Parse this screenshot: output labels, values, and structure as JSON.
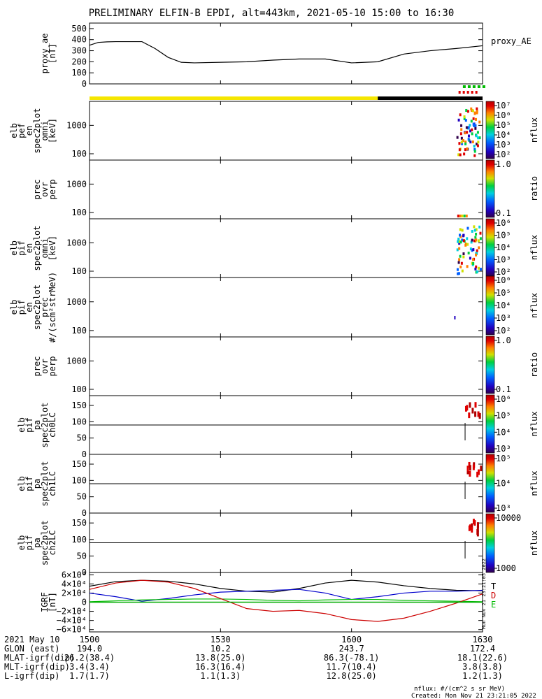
{
  "title": "PRELIMINARY ELFIN-B EPDI, alt=443km, 2021-05-10 15:00 to 16:30",
  "footer": {
    "nflux_units": "nflux: #/(cm^2 s sr MeV)",
    "created": "Created: Mon Nov 21 23:21:05 2022",
    "side_stamp": "Mon Nov 21 23:21:05 2022"
  },
  "colors": {
    "proxy_line": "#000000",
    "state_yellow": "#f5e600",
    "state_black": "#000000",
    "grf_t": "#000000",
    "grf_d": "#cc0000",
    "grf_e": "#00bb00",
    "grf_blue": "#0000cc"
  },
  "time_axis": {
    "start_minutes": 0,
    "end_minutes": 90,
    "ticks": [
      {
        "label": "1500",
        "minutes": 0
      },
      {
        "label": "1530",
        "minutes": 30
      },
      {
        "label": "1600",
        "minutes": 60
      },
      {
        "label": "1630",
        "minutes": 90
      }
    ]
  },
  "ephemeris": {
    "header": [
      "2021 May 10",
      "1500",
      "1530",
      "1600",
      "1630"
    ],
    "rows": [
      {
        "label": "GLON (east)",
        "values": [
          "194.0",
          "10.2",
          "243.7",
          "172.4"
        ]
      },
      {
        "label": "MLAT-igrf(dip)",
        "values": [
          "26.2(38.4)",
          "13.8(25.0)",
          "86.3(-78.1)",
          "18.1(22.6)"
        ]
      },
      {
        "label": "MLT-igrf(dip)",
        "values": [
          "3.4(3.4)",
          "16.3(16.4)",
          "11.7(10.4)",
          "3.8(3.8)"
        ]
      },
      {
        "label": "L-igrf(dip)",
        "values": [
          "1.7(1.7)",
          "1.1(1.3)",
          "12.8(25.0)",
          "1.2(1.3)"
        ]
      }
    ]
  },
  "colorbars": [
    {
      "label": "nflux",
      "ticks": [
        "10⁷",
        "10⁶",
        "10⁵",
        "10⁴",
        "10³",
        "10²"
      ]
    },
    {
      "label": "ratio",
      "ticks": [
        "1.0",
        "0.1"
      ]
    },
    {
      "label": "nflux",
      "ticks": [
        "10⁶",
        "10⁵",
        "10⁴",
        "10³",
        "10²"
      ]
    },
    {
      "label": "nflux",
      "ticks": [
        "10⁶",
        "10⁵",
        "10⁴",
        "10³",
        "10²"
      ]
    },
    {
      "label": "ratio",
      "ticks": [
        "1.0",
        "0.1"
      ]
    },
    {
      "label": "nflux",
      "ticks": [
        "10⁶",
        "10⁵",
        "10⁴",
        "10³"
      ]
    },
    {
      "label": "nflux",
      "ticks": [
        "10⁵",
        "10⁴",
        "10³"
      ]
    },
    {
      "label": "nflux",
      "ticks": [
        "10000",
        "1000"
      ]
    }
  ],
  "chart_data": [
    {
      "type": "line",
      "ylabel": [
        "proxy_ae",
        "[nT]"
      ],
      "legend": "proxy_AE",
      "ylim": [
        0,
        550
      ],
      "yticks": [
        "0",
        "100",
        "200",
        "300",
        "400",
        "500"
      ],
      "yticks_values": [
        0,
        100,
        200,
        300,
        400,
        500
      ],
      "series": [
        {
          "x": [
            0,
            2,
            4,
            6,
            12,
            15,
            18,
            21,
            24,
            30,
            36,
            42,
            48,
            54,
            60,
            66,
            72,
            78,
            84,
            90
          ],
          "y": [
            350,
            375,
            380,
            382,
            382,
            320,
            240,
            195,
            190,
            195,
            200,
            215,
            225,
            225,
            190,
            200,
            270,
            300,
            320,
            345
          ]
        }
      ]
    },
    {
      "type": "heatmap",
      "ylabel": [
        "elb",
        "pef",
        "en",
        "spec2plot",
        "omni",
        "[keV]"
      ],
      "yscale": "log",
      "ylim": [
        60,
        7000
      ],
      "yticks": [
        "100",
        "1000"
      ],
      "yticks_values": [
        100,
        1000
      ],
      "colorbar": 0
    },
    {
      "type": "heatmap",
      "ylabel": [
        "prec",
        "ovr",
        "perp"
      ],
      "yscale": "log",
      "ylim": [
        60,
        7000
      ],
      "yticks": [
        "100",
        "1000"
      ],
      "yticks_values": [
        100,
        1000
      ],
      "colorbar": 1
    },
    {
      "type": "heatmap",
      "ylabel": [
        "elb",
        "pif",
        "en",
        "spec2plot",
        "omni",
        "[keV]"
      ],
      "yscale": "log",
      "ylim": [
        60,
        7000
      ],
      "yticks": [
        "100",
        "1000"
      ],
      "yticks_values": [
        100,
        1000
      ],
      "colorbar": 2
    },
    {
      "type": "heatmap",
      "ylabel": [
        "elb",
        "pif",
        "en",
        "spec2plot",
        "prec",
        "#/(scm²strMeV)"
      ],
      "yscale": "log",
      "ylim": [
        60,
        7000
      ],
      "yticks": [
        "100",
        "1000"
      ],
      "yticks_values": [
        100,
        1000
      ],
      "colorbar": 3
    },
    {
      "type": "heatmap",
      "ylabel": [
        "prec",
        "ovr",
        "perp"
      ],
      "yscale": "log",
      "ylim": [
        60,
        7000
      ],
      "yticks": [
        "100",
        "1000"
      ],
      "yticks_values": [
        100,
        1000
      ],
      "colorbar": 4
    },
    {
      "type": "heatmap",
      "ylabel": [
        "elb",
        "pif",
        "pa",
        "spec2plot",
        "ch0LC"
      ],
      "ylim": [
        0,
        180
      ],
      "hline": 90,
      "yticks": [
        "0",
        "50",
        "100",
        "150"
      ],
      "yticks_values": [
        0,
        50,
        100,
        150
      ],
      "colorbar": 5
    },
    {
      "type": "heatmap",
      "ylabel": [
        "elb",
        "pif",
        "pa",
        "spec2plot",
        "ch1LC"
      ],
      "ylim": [
        0,
        180
      ],
      "hline": 90,
      "yticks": [
        "0",
        "50",
        "100",
        "150"
      ],
      "yticks_values": [
        0,
        50,
        100,
        150
      ],
      "colorbar": 6
    },
    {
      "type": "heatmap",
      "ylabel": [
        "elb",
        "pif",
        "pa",
        "spec2plot",
        "ch2LC"
      ],
      "ylim": [
        0,
        180
      ],
      "hline": 90,
      "yticks": [
        "0",
        "50",
        "100",
        "150"
      ],
      "yticks_values": [
        0,
        50,
        100,
        150
      ],
      "colorbar": 7
    },
    {
      "type": "line",
      "ylabel": [
        "IGRF",
        "[nT]"
      ],
      "ylim": [
        -65000,
        65000
      ],
      "yticks": [
        "6×10⁴",
        "4×10⁴",
        "2×10⁴",
        "0",
        "−2×10⁴",
        "−4×10⁴",
        "−6×10⁴"
      ],
      "yticks_values": [
        60000,
        40000,
        20000,
        0,
        -20000,
        -40000,
        -60000
      ],
      "legend_letters": [
        "T",
        "D",
        "E"
      ],
      "series": [
        {
          "color": "#000000",
          "x": [
            0,
            6,
            12,
            18,
            24,
            30,
            36,
            42,
            48,
            54,
            60,
            66,
            72,
            78,
            84,
            90
          ],
          "y": [
            35000,
            45000,
            48000,
            46000,
            40000,
            30000,
            24000,
            22000,
            30000,
            42000,
            48000,
            44000,
            36000,
            30000,
            26000,
            25000
          ]
        },
        {
          "color": "#0000cc",
          "x": [
            0,
            6,
            12,
            18,
            24,
            30,
            36,
            42,
            48,
            54,
            60,
            66,
            72,
            78,
            84,
            90
          ],
          "y": [
            20000,
            12000,
            2000,
            8000,
            16000,
            22000,
            24000,
            26000,
            28000,
            20000,
            6000,
            12000,
            20000,
            24000,
            24000,
            26000
          ]
        },
        {
          "color": "#00bb00",
          "x": [
            0,
            6,
            12,
            18,
            24,
            30,
            36,
            42,
            48,
            54,
            60,
            66,
            72,
            78,
            84,
            90
          ],
          "y": [
            1000,
            3000,
            5000,
            6000,
            7000,
            7000,
            6000,
            4000,
            3000,
            5000,
            6000,
            6000,
            4000,
            3000,
            2000,
            1000
          ]
        },
        {
          "color": "#cc0000",
          "x": [
            0,
            6,
            12,
            18,
            24,
            30,
            36,
            42,
            48,
            54,
            60,
            66,
            72,
            78,
            84,
            90
          ],
          "y": [
            28000,
            42000,
            48000,
            44000,
            30000,
            8000,
            -14000,
            -20000,
            -18000,
            -25000,
            -38000,
            -42000,
            -35000,
            -20000,
            -2000,
            18000
          ]
        }
      ]
    }
  ]
}
